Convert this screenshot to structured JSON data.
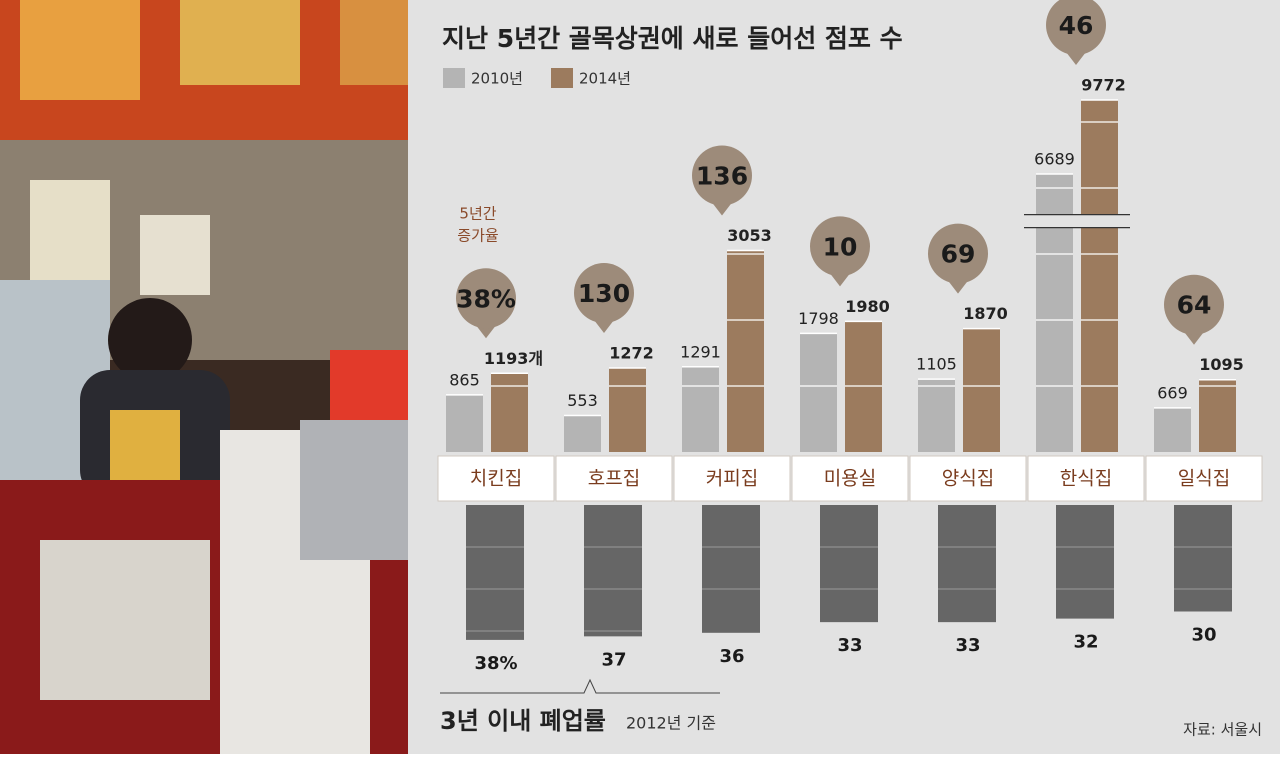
{
  "chart_data": {
    "type": "bar",
    "title": "지난 5년간 골목상권에 새로 들어선 점포 수",
    "categories": [
      "치킨집",
      "호프집",
      "커피집",
      "미용실",
      "양식집",
      "한식집",
      "일식집"
    ],
    "series": [
      {
        "name": "2010년",
        "color": "#b4b4b4",
        "values": [
          865,
          553,
          1291,
          1798,
          1105,
          6689,
          669
        ]
      },
      {
        "name": "2014년",
        "color": "#9c7b5e",
        "values": [
          1193,
          1272,
          3053,
          1980,
          1870,
          9772,
          1095
        ],
        "value_labels": [
          "1193개",
          "1272",
          "3053",
          "1980",
          "1870",
          "9772",
          "1095"
        ]
      }
    ],
    "axis_break": [
      3400,
      5000
    ],
    "growth": {
      "title": [
        "5년간",
        "증가율"
      ],
      "color": "#9d8b7a",
      "values": [
        38,
        130,
        136,
        10,
        69,
        46,
        64
      ],
      "value_labels": [
        "38%",
        "130",
        "136",
        "10",
        "69",
        "46",
        "64"
      ]
    },
    "closure": {
      "title": "3년 이내 폐업률",
      "subtitle": "2012년 기준",
      "color": "#666666",
      "values": [
        38,
        37,
        36,
        33,
        33,
        32,
        30
      ],
      "value_labels": [
        "38%",
        "37",
        "36",
        "33",
        "33",
        "32",
        "30"
      ]
    },
    "source": "자료: 서울시"
  }
}
